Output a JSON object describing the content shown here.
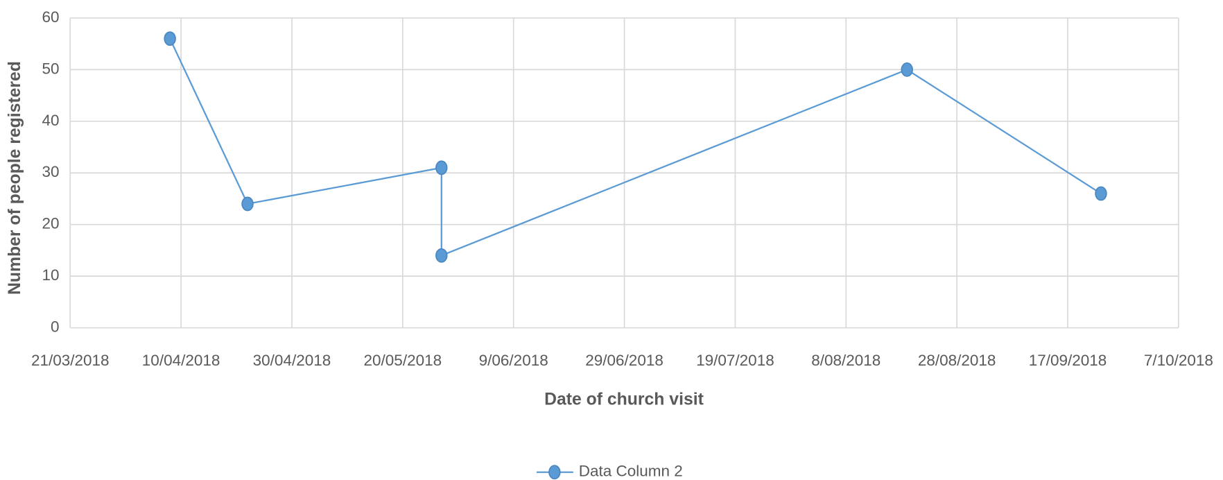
{
  "chart_data": {
    "type": "line",
    "x_label": "Date of church visit",
    "y_label": "Number of people registered",
    "x": [
      "8/04/2018",
      "22/04/2018",
      "27/05/2018",
      "27/05/2018",
      "19/08/2018",
      "23/09/2018"
    ],
    "series": [
      {
        "name": "Data Column 2",
        "color": "#5b9bd5",
        "values": [
          56,
          24,
          31,
          14,
          50,
          26
        ]
      }
    ],
    "xlim": [
      "21/03/2018",
      "7/10/2018"
    ],
    "xticks": [
      "21/03/2018",
      "10/04/2018",
      "30/04/2018",
      "20/05/2018",
      "9/06/2018",
      "29/06/2018",
      "19/07/2018",
      "8/08/2018",
      "28/08/2018",
      "17/09/2018",
      "7/10/2018"
    ],
    "ylim": [
      0,
      60
    ],
    "yticks": [
      0,
      10,
      20,
      30,
      40,
      50,
      60
    ],
    "grid": true,
    "legend": "bottom"
  }
}
